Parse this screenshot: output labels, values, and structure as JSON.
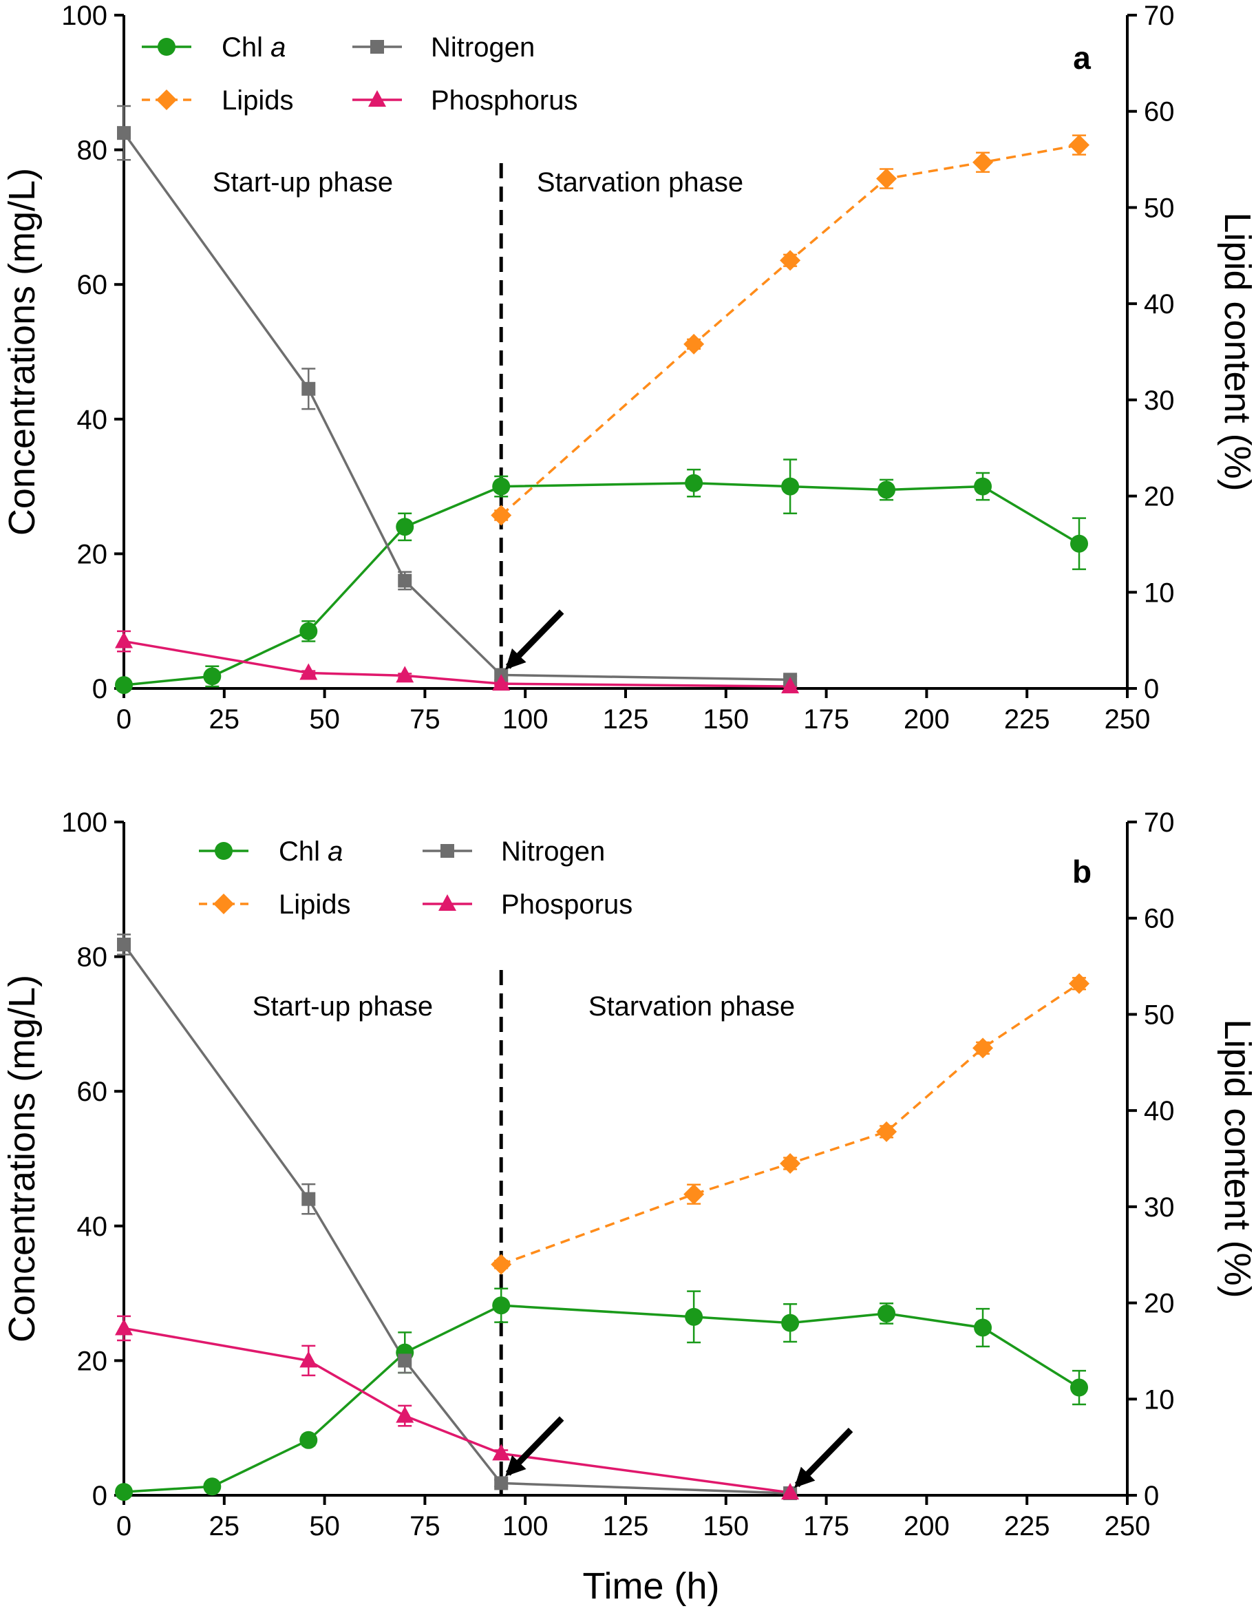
{
  "chart_data": [
    {
      "type": "line",
      "panel_label": "a",
      "xlabel": "Time (h)",
      "ylabel": "Concentrations (mg/L)",
      "y2label": "Lipid content (%)",
      "xlim": [
        0,
        250
      ],
      "ylim": [
        0,
        100
      ],
      "y2lim": [
        0,
        70
      ],
      "xticks": [
        "0",
        "25",
        "50",
        "75",
        "100",
        "125",
        "150",
        "175",
        "200",
        "225",
        "250"
      ],
      "yticks": [
        "0",
        "20",
        "40",
        "60",
        "80",
        "100"
      ],
      "y2ticks": [
        "0",
        "10",
        "20",
        "30",
        "40",
        "50",
        "60",
        "70"
      ],
      "phase_divider_x": 94,
      "phase_labels": [
        "Start-up phase",
        "Starvation phase"
      ],
      "arrows_at": [
        {
          "x": 94,
          "y": 2
        }
      ],
      "legend": [
        {
          "name": "Chl ",
          "name_italic": "a",
          "series": "chl"
        },
        {
          "name": "Nitrogen",
          "name_italic": "",
          "series": "n"
        },
        {
          "name": "Lipids",
          "name_italic": "",
          "series": "lip"
        },
        {
          "name": "Phosphorus",
          "name_italic": "",
          "series": "p"
        }
      ],
      "series": [
        {
          "id": "chl",
          "name": "Chl a",
          "axis": "left",
          "color": "#1a9a1a",
          "marker": "circle",
          "dashed": false,
          "x": [
            0,
            22,
            46,
            70,
            94,
            142,
            166,
            190,
            214,
            238
          ],
          "values": [
            0.5,
            1.8,
            8.5,
            24,
            30,
            30.5,
            30,
            29.5,
            30,
            21.5
          ],
          "errors": [
            0.5,
            1.5,
            1.5,
            2,
            1.5,
            2,
            4,
            1.5,
            2,
            3.8
          ]
        },
        {
          "id": "n",
          "name": "Nitrogen",
          "axis": "left",
          "color": "#6e6e6e",
          "marker": "square",
          "dashed": false,
          "x": [
            0,
            46,
            70,
            94,
            166
          ],
          "values": [
            82.5,
            44.5,
            16,
            2,
            1.3
          ],
          "errors": [
            4,
            3,
            1.3,
            0.8,
            0.5
          ]
        },
        {
          "id": "p",
          "name": "Phosphorus",
          "axis": "left",
          "color": "#e0186c",
          "marker": "triangle",
          "dashed": false,
          "x": [
            0,
            46,
            70,
            94,
            166
          ],
          "values": [
            7,
            2.3,
            1.9,
            0.7,
            0.3
          ],
          "errors": [
            1.5,
            0.3,
            0.3,
            0.2,
            0.1
          ]
        },
        {
          "id": "lip",
          "name": "Lipids",
          "axis": "right",
          "color": "#ff8c1a",
          "marker": "diamond",
          "dashed": true,
          "x": [
            94,
            142,
            166,
            190,
            214,
            238
          ],
          "values": [
            18,
            35.8,
            44.5,
            53,
            54.7,
            56.5
          ],
          "errors": [
            0.5,
            0.5,
            0.6,
            1.0,
            1.0,
            1.0
          ]
        }
      ]
    },
    {
      "type": "line",
      "panel_label": "b",
      "xlabel": "Time (h)",
      "ylabel": "Concentrations (mg/L)",
      "y2label": "Lipid content (%)",
      "xlim": [
        0,
        250
      ],
      "ylim": [
        0,
        100
      ],
      "y2lim": [
        0,
        70
      ],
      "xticks": [
        "0",
        "25",
        "50",
        "75",
        "100",
        "125",
        "150",
        "175",
        "200",
        "225",
        "250"
      ],
      "yticks": [
        "0",
        "20",
        "40",
        "60",
        "80",
        "100"
      ],
      "y2ticks": [
        "0",
        "10",
        "20",
        "30",
        "40",
        "50",
        "60",
        "70"
      ],
      "phase_divider_x": 94,
      "phase_labels": [
        "Start-up phase",
        "Starvation phase"
      ],
      "arrows_at": [
        {
          "x": 94,
          "y": 2
        },
        {
          "x": 166,
          "y": 0.3
        }
      ],
      "legend": [
        {
          "name": "Chl ",
          "name_italic": "a",
          "series": "chl"
        },
        {
          "name": "Nitrogen",
          "name_italic": "",
          "series": "n"
        },
        {
          "name": "Lipids",
          "name_italic": "",
          "series": "lip"
        },
        {
          "name": "Phosporus",
          "name_italic": "",
          "series": "p"
        }
      ],
      "series": [
        {
          "id": "chl",
          "name": "Chl a",
          "axis": "left",
          "color": "#1a9a1a",
          "marker": "circle",
          "dashed": false,
          "x": [
            0,
            22,
            46,
            70,
            94,
            142,
            166,
            190,
            214,
            238
          ],
          "values": [
            0.5,
            1.3,
            8.2,
            21.2,
            28.2,
            26.5,
            25.6,
            27,
            24.9,
            16
          ],
          "errors": [
            0.3,
            0.4,
            0.8,
            3,
            2.5,
            3.8,
            2.8,
            1.5,
            2.8,
            2.5
          ]
        },
        {
          "id": "n",
          "name": "Nitrogen",
          "axis": "left",
          "color": "#6e6e6e",
          "marker": "square",
          "dashed": false,
          "x": [
            0,
            46,
            70,
            94,
            166
          ],
          "values": [
            81.8,
            44,
            20,
            1.8,
            0.3
          ],
          "errors": [
            1.5,
            2.2,
            1.8,
            0.5,
            0.1
          ]
        },
        {
          "id": "p",
          "name": "Phosporus",
          "axis": "left",
          "color": "#e0186c",
          "marker": "triangle",
          "dashed": false,
          "x": [
            0,
            46,
            70,
            94,
            166
          ],
          "values": [
            24.8,
            20,
            11.8,
            6.2,
            0.4
          ],
          "errors": [
            1.8,
            2.2,
            1.5,
            0.5,
            0.1
          ]
        },
        {
          "id": "lip",
          "name": "Lipids",
          "axis": "right",
          "color": "#ff8c1a",
          "marker": "diamond",
          "dashed": true,
          "x": [
            94,
            142,
            166,
            190,
            214,
            238
          ],
          "values": [
            24,
            31.3,
            34.5,
            37.8,
            46.5,
            53.2
          ],
          "errors": [
            0.4,
            1.0,
            0.6,
            0.6,
            0.6,
            0.6
          ]
        }
      ]
    }
  ]
}
